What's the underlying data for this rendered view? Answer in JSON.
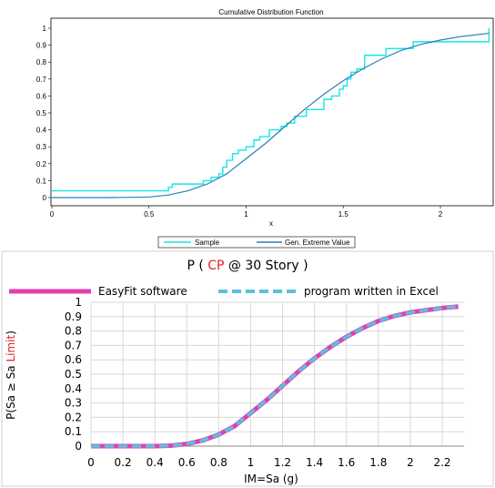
{
  "chart_data": [
    {
      "type": "line",
      "title": "Cumulative Distribution Function",
      "xlabel": "x",
      "ylabel": "",
      "xlim": [
        0,
        2.25
      ],
      "ylim": [
        0,
        1
      ],
      "x_ticks": [
        "0",
        "0.5",
        "1",
        "1.5",
        "2"
      ],
      "y_ticks": [
        "0",
        "0.1",
        "0.2",
        "0.3",
        "0.4",
        "0.5",
        "0.6",
        "0.7",
        "0.8",
        "0.9",
        "1"
      ],
      "grid": false,
      "legend": "bottom",
      "colors": {
        "sample": "#18e6e6",
        "fit": "#2a7fb8"
      },
      "series": [
        {
          "name": "Sample",
          "kind": "step",
          "x": [
            0.0,
            0.6,
            0.62,
            0.78,
            0.82,
            0.86,
            0.88,
            0.9,
            0.93,
            0.96,
            1.0,
            1.04,
            1.07,
            1.12,
            1.18,
            1.21,
            1.25,
            1.31,
            1.4,
            1.44,
            1.48,
            1.5,
            1.52,
            1.54,
            1.57,
            1.61,
            1.72,
            1.86,
            2.25
          ],
          "y": [
            0.04,
            0.06,
            0.08,
            0.1,
            0.12,
            0.14,
            0.18,
            0.22,
            0.26,
            0.28,
            0.3,
            0.34,
            0.36,
            0.4,
            0.42,
            0.44,
            0.48,
            0.52,
            0.58,
            0.6,
            0.64,
            0.66,
            0.7,
            0.74,
            0.76,
            0.84,
            0.88,
            0.92,
            1.0
          ]
        },
        {
          "name": "Gen. Extreme Value",
          "kind": "curve",
          "x": [
            0.0,
            0.3,
            0.5,
            0.6,
            0.7,
            0.8,
            0.9,
            1.0,
            1.1,
            1.2,
            1.3,
            1.4,
            1.5,
            1.6,
            1.7,
            1.8,
            1.9,
            2.0,
            2.1,
            2.25
          ],
          "y": [
            0.0,
            0.0,
            0.003,
            0.015,
            0.04,
            0.08,
            0.14,
            0.23,
            0.32,
            0.42,
            0.52,
            0.61,
            0.69,
            0.76,
            0.82,
            0.87,
            0.905,
            0.93,
            0.95,
            0.97
          ]
        }
      ]
    },
    {
      "type": "line",
      "title": {
        "prefix": "P ( ",
        "highlight": "CP",
        "suffix": " @ 30  Story )"
      },
      "xlabel": "IM=Sa (g)",
      "ylabel": {
        "prefix": "P(Sa ≥ Sa ",
        "highlight": "Limit",
        "suffix": ")"
      },
      "xlim": [
        0,
        2.3
      ],
      "ylim": [
        0,
        1
      ],
      "x_ticks": [
        "0",
        "0.2",
        "0.4",
        "0.6",
        "0.8",
        "1",
        "1.2",
        "1.4",
        "1.6",
        "1.8",
        "2",
        "2.2"
      ],
      "y_ticks": [
        "0",
        "0.1",
        "0.2",
        "0.3",
        "0.4",
        "0.5",
        "0.6",
        "0.7",
        "0.8",
        "0.9",
        "1"
      ],
      "grid": true,
      "legend": "top",
      "colors": {
        "easyfit": "#e040b0",
        "excel": "#5bc0de",
        "highlight": "#e02020"
      },
      "series": [
        {
          "name": "EasyFit software",
          "x": [
            0.0,
            0.2,
            0.4,
            0.5,
            0.6,
            0.7,
            0.8,
            0.9,
            1.0,
            1.1,
            1.2,
            1.3,
            1.4,
            1.5,
            1.6,
            1.7,
            1.8,
            1.9,
            2.0,
            2.1,
            2.2,
            2.3
          ],
          "y": [
            0.0,
            0.0,
            0.0,
            0.003,
            0.015,
            0.04,
            0.08,
            0.14,
            0.23,
            0.32,
            0.42,
            0.52,
            0.61,
            0.69,
            0.76,
            0.82,
            0.87,
            0.905,
            0.93,
            0.945,
            0.96,
            0.97
          ]
        },
        {
          "name": "program written in Excel",
          "x": [
            0.0,
            0.2,
            0.4,
            0.5,
            0.6,
            0.7,
            0.8,
            0.9,
            1.0,
            1.1,
            1.2,
            1.3,
            1.4,
            1.5,
            1.6,
            1.7,
            1.8,
            1.9,
            2.0,
            2.1,
            2.2,
            2.3
          ],
          "y": [
            0.0,
            0.0,
            0.0,
            0.003,
            0.015,
            0.04,
            0.08,
            0.14,
            0.23,
            0.32,
            0.42,
            0.52,
            0.61,
            0.69,
            0.76,
            0.82,
            0.87,
            0.905,
            0.93,
            0.945,
            0.96,
            0.97
          ]
        }
      ]
    }
  ]
}
